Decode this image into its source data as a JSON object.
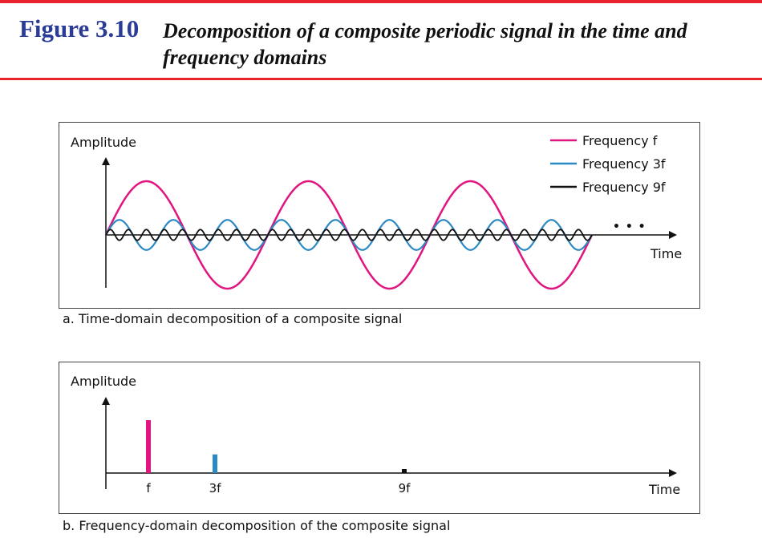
{
  "header": {
    "figure_label": "Figure 3.10",
    "title": "Decomposition of a composite periodic signal in the time and frequency domains"
  },
  "colors": {
    "rule": "#e8232e",
    "figure_label": "#2a3c98",
    "frequency_f": "#e0157f",
    "frequency_3f": "#2b8ac4",
    "frequency_9f": "#111111"
  },
  "time_domain": {
    "y_axis_label": "Amplitude",
    "x_axis_label": "Time",
    "continuation": "• • •",
    "legend": [
      {
        "label": "Frequency f"
      },
      {
        "label": "Frequency 3f"
      },
      {
        "label": "Frequency 9f"
      }
    ],
    "caption": "a. Time-domain decomposition of a composite signal"
  },
  "frequency_domain": {
    "y_axis_label": "Amplitude",
    "x_axis_label": "Time",
    "ticks": [
      {
        "label": "f"
      },
      {
        "label": "3f"
      },
      {
        "label": "9f"
      }
    ],
    "caption": "b. Frequency-domain decomposition of the composite signal"
  },
  "chart_data": {
    "type": "bar",
    "categories": [
      "f",
      "3f",
      "9f"
    ],
    "values": [
      1,
      0.333,
      0.111
    ]
  }
}
